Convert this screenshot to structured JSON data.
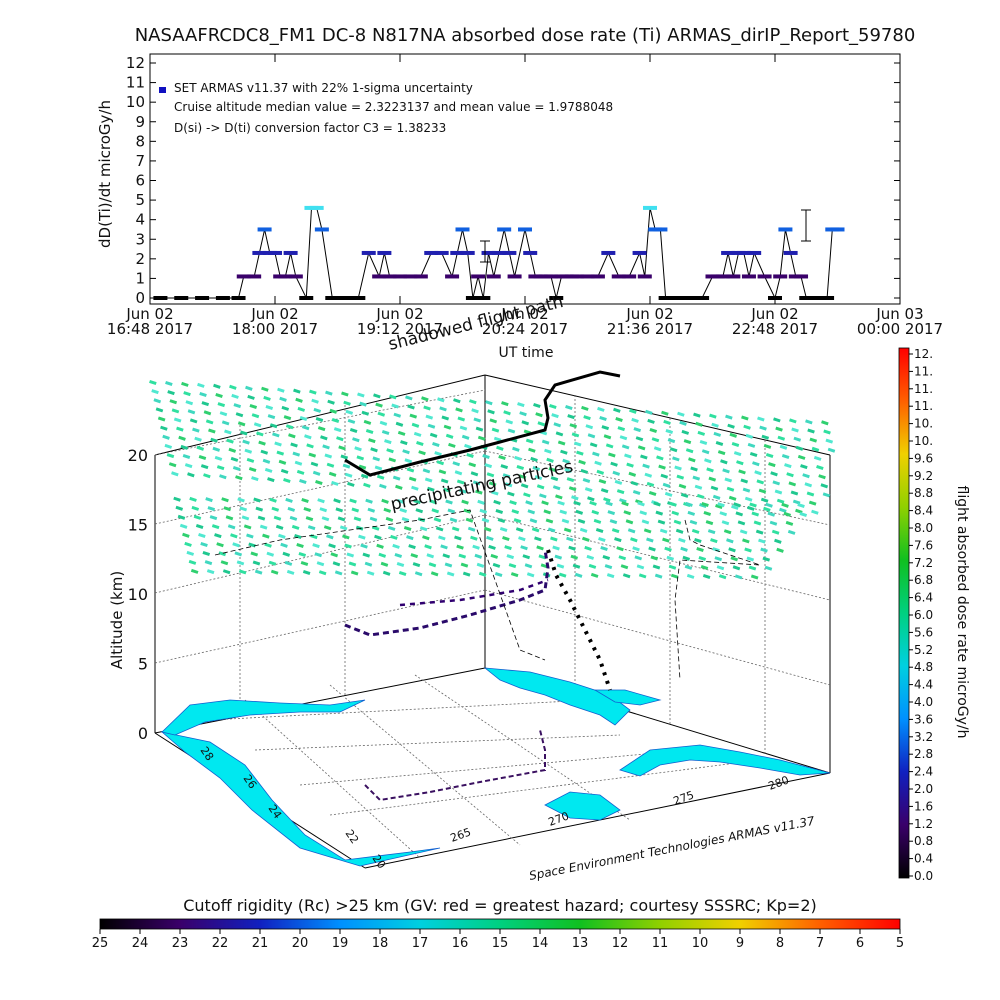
{
  "figure": {
    "title": "NASAAFRCDC8_FM1 DC-8   N817NA absorbed dose rate (Ti) ARMAS_dirIP_Report_59780"
  },
  "chart_data": [
    {
      "type": "scatter",
      "ylabel": "dD(Ti)/dt microGy/h",
      "xlabel": "UT time",
      "ylim": [
        0,
        12
      ],
      "yticks": [
        "0",
        "1",
        "2",
        "3",
        "4",
        "5",
        "6",
        "7",
        "8",
        "9",
        "10",
        "11",
        "12"
      ],
      "xticks": [
        {
          "date": "Jun 02",
          "time": "16:48 2017"
        },
        {
          "date": "Jun 02",
          "time": "18:00 2017"
        },
        {
          "date": "Jun 02",
          "time": "19:12 2017"
        },
        {
          "date": "Jun 02",
          "time": "20:24 2017"
        },
        {
          "date": "Jun 02",
          "time": "21:36 2017"
        },
        {
          "date": "Jun 02",
          "time": "22:48 2017"
        },
        {
          "date": "Jun 03",
          "time": "00:00 2017"
        }
      ],
      "xlim_hours_ut": [
        16.8,
        24.0
      ],
      "legend": [
        "SET ARMAS v11.37 with 22% 1-sigma uncertainty",
        "Cruise altitude median value = 2.3223137 and mean value = 1.9788048",
        "D(si) -> D(ti) conversion factor C3 = 1.38233"
      ],
      "annotations": [
        "shadowed flight path"
      ],
      "series": [
        {
          "x_hours_ut": [
            16.9,
            17.1,
            17.3,
            17.5,
            17.65,
            17.7,
            17.8,
            17.85,
            17.9,
            17.95,
            18.0,
            18.05,
            18.1,
            18.15,
            18.2,
            18.3,
            18.35,
            18.4,
            18.45,
            18.55,
            18.6,
            18.7,
            18.8,
            18.9,
            19.0,
            19.05,
            19.1,
            19.2,
            19.3,
            19.4,
            19.5,
            19.6,
            19.7,
            19.75,
            19.8,
            19.85,
            19.9,
            19.95,
            20.0,
            20.05,
            20.1,
            20.15,
            20.2,
            20.25,
            20.3,
            20.4,
            20.45,
            20.5,
            20.55,
            20.6,
            20.65,
            20.7,
            20.75,
            20.8,
            20.85,
            20.9,
            21.0,
            21.1,
            21.2,
            21.3,
            21.4,
            21.5,
            21.55,
            21.6,
            21.65,
            21.7,
            21.75,
            21.8,
            21.85,
            21.95,
            22.0,
            22.1,
            22.2,
            22.25,
            22.3,
            22.35,
            22.4,
            22.45,
            22.5,
            22.55,
            22.6,
            22.7,
            22.8,
            22.85,
            22.9,
            22.95,
            23.0,
            23.05,
            23.1,
            23.2,
            23.3,
            23.35,
            23.4
          ],
          "y": [
            0,
            0,
            0,
            0,
            0,
            1.1,
            1.1,
            2.3,
            3.5,
            2.3,
            2.3,
            1.1,
            1.1,
            2.3,
            1.1,
            0,
            4.6,
            4.6,
            3.5,
            0,
            0,
            0,
            0,
            2.3,
            1.1,
            2.3,
            1.1,
            1.1,
            1.1,
            1.1,
            2.3,
            2.3,
            1.1,
            2.3,
            3.5,
            2.3,
            0,
            1.1,
            0,
            2.3,
            1.1,
            2.3,
            3.5,
            2.3,
            1.1,
            3.5,
            2.3,
            1.1,
            1.1,
            1.1,
            1.1,
            0,
            1.1,
            1.1,
            1.1,
            1.1,
            1.1,
            1.1,
            2.3,
            1.1,
            1.1,
            2.3,
            1.1,
            4.6,
            3.5,
            3.5,
            0,
            0,
            0,
            0,
            0,
            0,
            1.1,
            1.1,
            1.1,
            2.3,
            1.1,
            2.3,
            2.3,
            1.1,
            2.3,
            1.1,
            0,
            1.1,
            3.5,
            2.3,
            1.1,
            1.1,
            0,
            0,
            0,
            3.5,
            3.5
          ]
        }
      ]
    },
    {
      "type": "scatter",
      "zlabel": "Altitude (km)",
      "zticks": [
        "0",
        "5",
        "10",
        "15",
        "20"
      ],
      "lat_ticks": [
        "20",
        "22",
        "24",
        "26",
        "28"
      ],
      "lon_ticks": [
        "265",
        "270",
        "275",
        "280"
      ],
      "annotations": [
        "precipitating particles"
      ],
      "footer": "Space Environment Technologies ARMAS v11.37",
      "colorbar": {
        "label": "flight absorbed dose rate microGy/h",
        "ticks": [
          "0.0",
          "0.4",
          "0.8",
          "1.2",
          "1.6",
          "2.0",
          "2.4",
          "2.8",
          "3.2",
          "3.6",
          "4.0",
          "4.4",
          "4.8",
          "5.2",
          "5.6",
          "6.0",
          "6.4",
          "6.8",
          "7.2",
          "7.6",
          "8.0",
          "8.4",
          "8.8",
          "9.2",
          "9.6",
          "10.",
          "10.",
          "11.",
          "11.",
          "11.",
          "12."
        ]
      },
      "cutoff_bar": {
        "label": "Cutoff rigidity (Rc) >25 km (GV: red = greatest hazard; courtesy SSSRC; Kp=2)",
        "ticks": [
          "25",
          "24",
          "23",
          "22",
          "21",
          "20",
          "19",
          "18",
          "17",
          "16",
          "15",
          "14",
          "13",
          "12",
          "11",
          "10",
          "9",
          "8",
          "7",
          "6",
          "5"
        ]
      }
    }
  ]
}
